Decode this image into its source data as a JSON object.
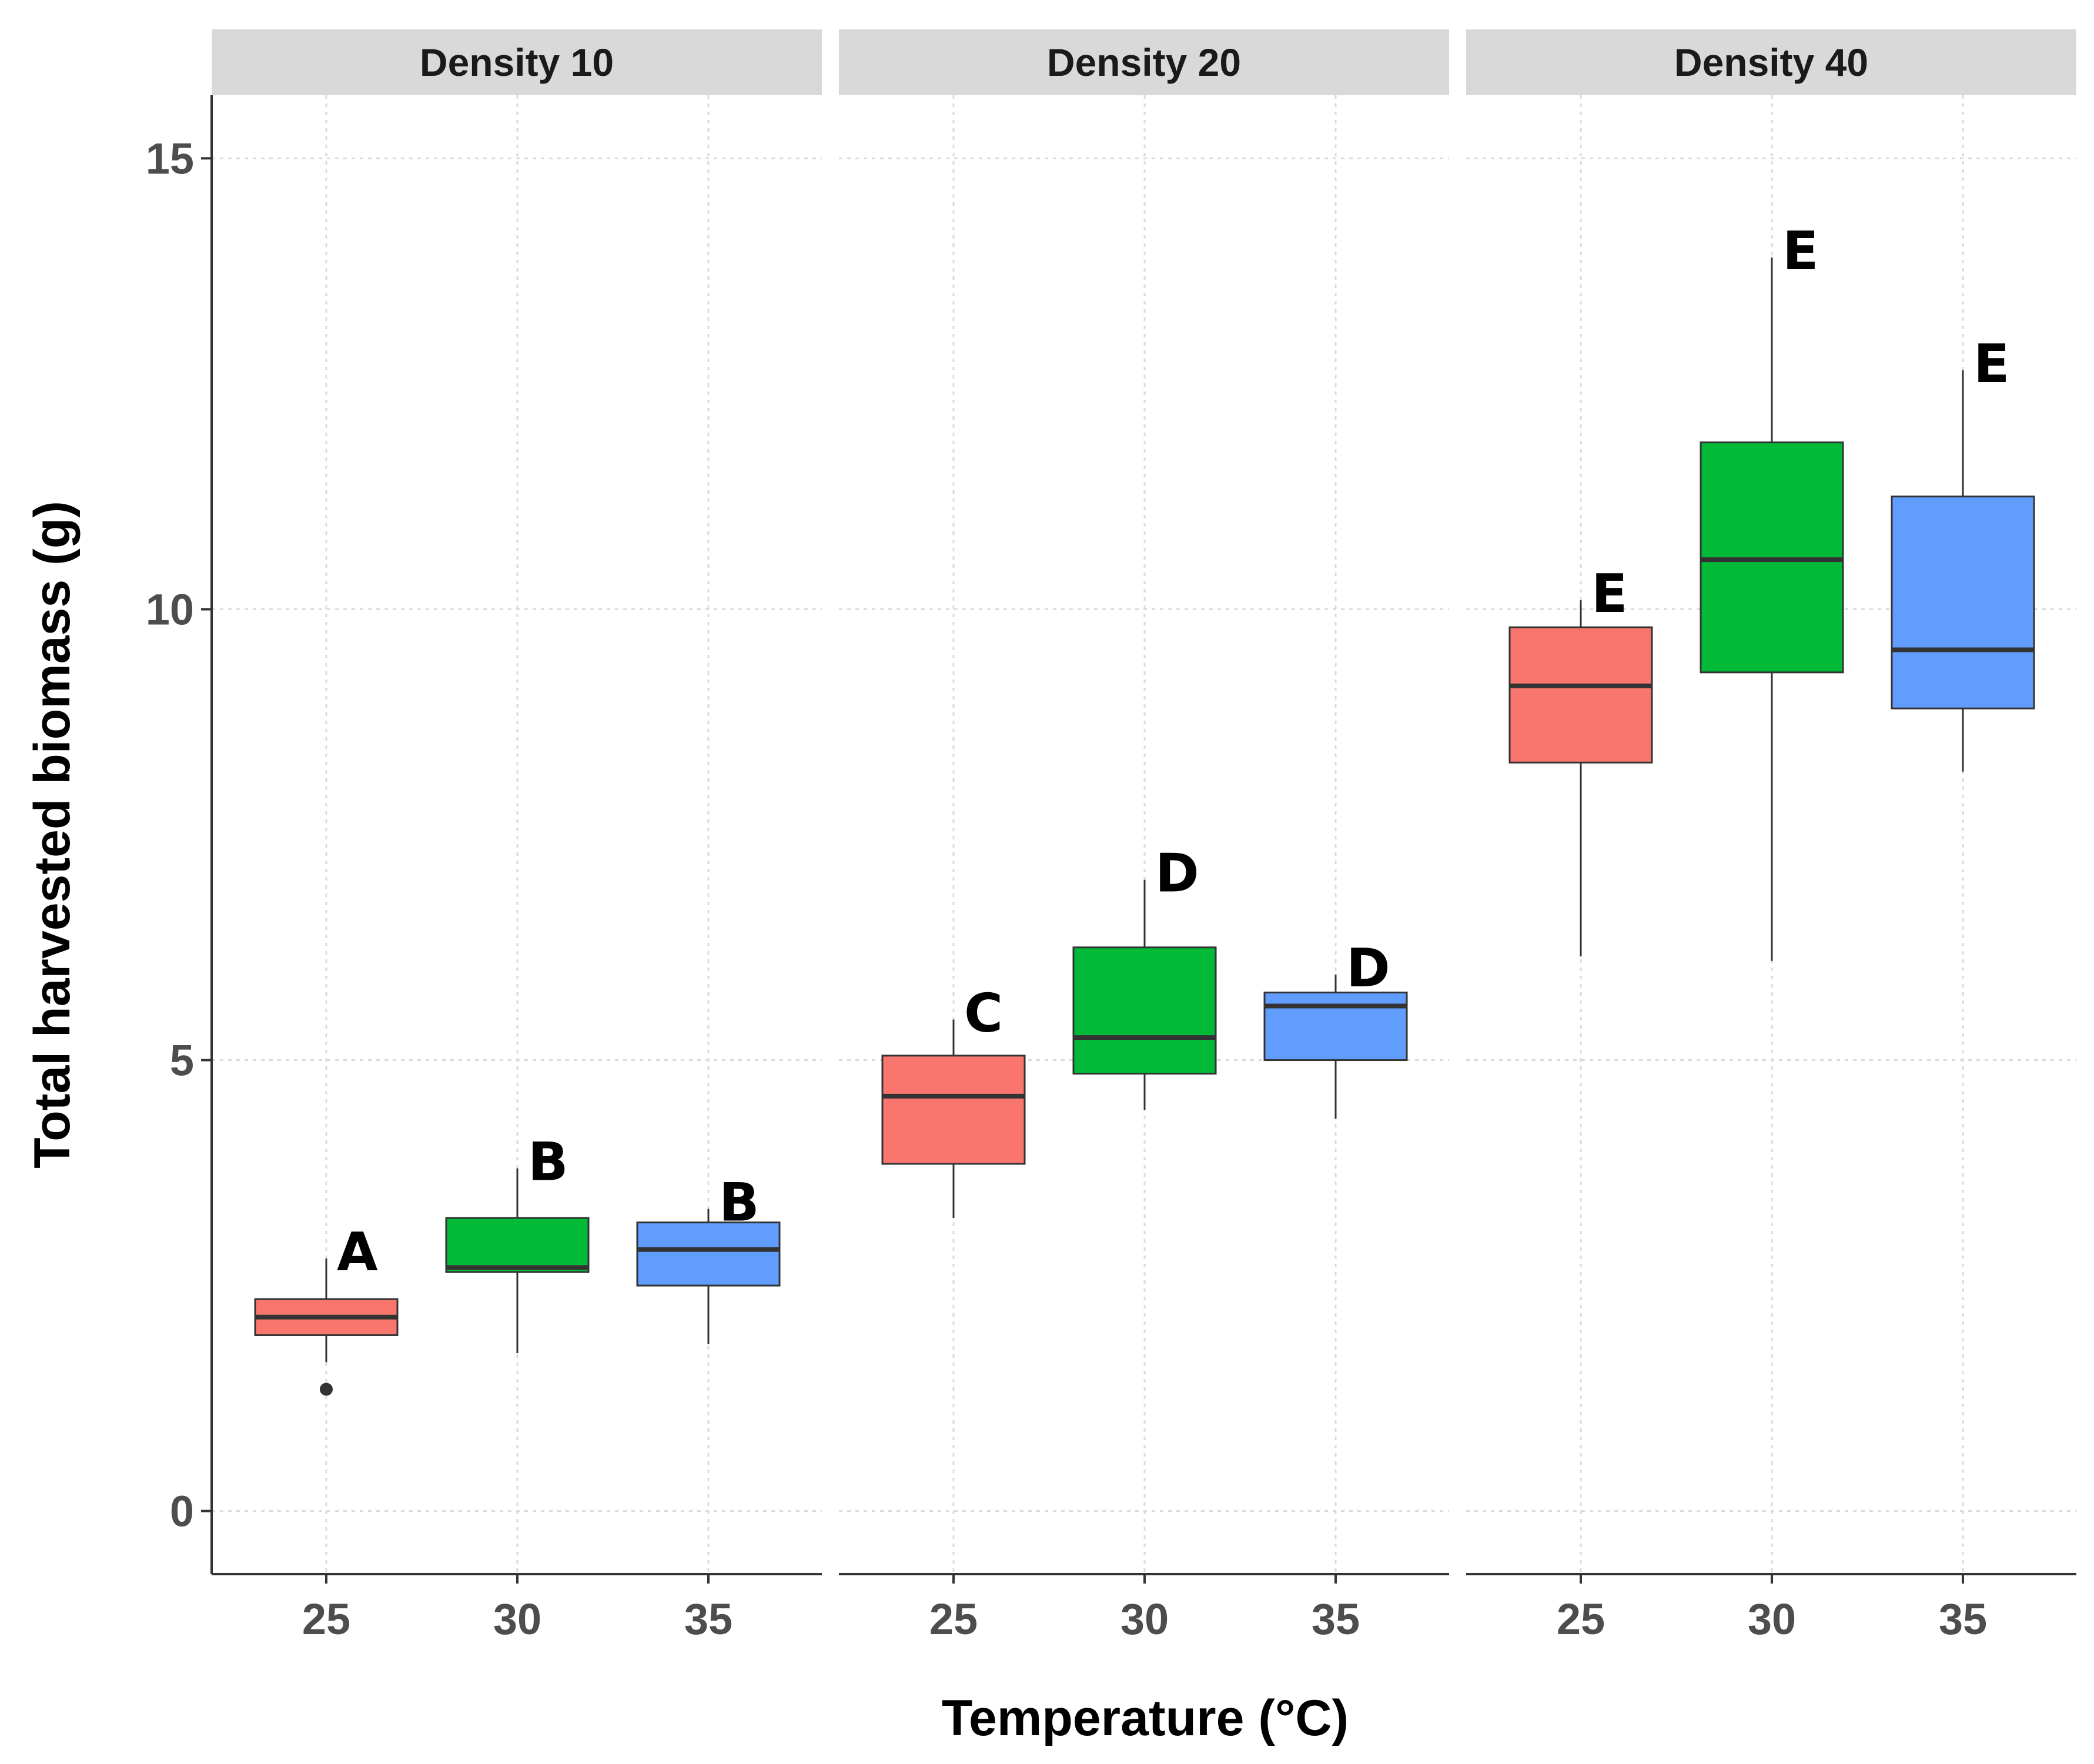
{
  "chart_data": {
    "type": "boxplot",
    "xlabel": "Temperature (°C)",
    "ylabel": "Total harvested biomass (g)",
    "ylim": [
      -0.7,
      15.7
    ],
    "yticks": [
      0,
      5,
      10,
      15
    ],
    "categories": [
      "25",
      "30",
      "35"
    ],
    "grid": true,
    "legend": "none",
    "colors": {
      "25": "#F8766D",
      "30": "#00BA38",
      "35": "#619CFF"
    },
    "panels": [
      {
        "label": "Density 10",
        "boxes": [
          {
            "x": "25",
            "whisker_low": 1.65,
            "q1": 1.95,
            "median": 2.15,
            "q3": 2.35,
            "whisker_high": 2.8,
            "outliers": [
              1.35
            ],
            "letter": "A"
          },
          {
            "x": "30",
            "whisker_low": 1.75,
            "q1": 2.65,
            "median": 2.7,
            "q3": 3.25,
            "whisker_high": 3.8,
            "outliers": [],
            "letter": "B"
          },
          {
            "x": "35",
            "whisker_low": 1.85,
            "q1": 2.5,
            "median": 2.9,
            "q3": 3.2,
            "whisker_high": 3.35,
            "outliers": [],
            "letter": "B"
          }
        ]
      },
      {
        "label": "Density 20",
        "boxes": [
          {
            "x": "25",
            "whisker_low": 3.25,
            "q1": 3.85,
            "median": 4.6,
            "q3": 5.05,
            "whisker_high": 5.45,
            "outliers": [],
            "letter": "C"
          },
          {
            "x": "30",
            "whisker_low": 4.45,
            "q1": 4.85,
            "median": 5.25,
            "q3": 6.25,
            "whisker_high": 7.0,
            "outliers": [],
            "letter": "D"
          },
          {
            "x": "35",
            "whisker_low": 4.35,
            "q1": 5.0,
            "median": 5.6,
            "q3": 5.75,
            "whisker_high": 5.95,
            "outliers": [],
            "letter": "D"
          }
        ]
      },
      {
        "label": "Density 40",
        "boxes": [
          {
            "x": "25",
            "whisker_low": 6.15,
            "q1": 8.3,
            "median": 9.15,
            "q3": 9.8,
            "whisker_high": 10.1,
            "outliers": [],
            "letter": "E"
          },
          {
            "x": "30",
            "whisker_low": 6.1,
            "q1": 9.3,
            "median": 10.55,
            "q3": 11.85,
            "whisker_high": 13.9,
            "outliers": [],
            "letter": "E"
          },
          {
            "x": "35",
            "whisker_low": 8.2,
            "q1": 8.9,
            "median": 9.55,
            "q3": 11.25,
            "whisker_high": 12.65,
            "outliers": [],
            "letter": "E"
          }
        ]
      }
    ]
  }
}
